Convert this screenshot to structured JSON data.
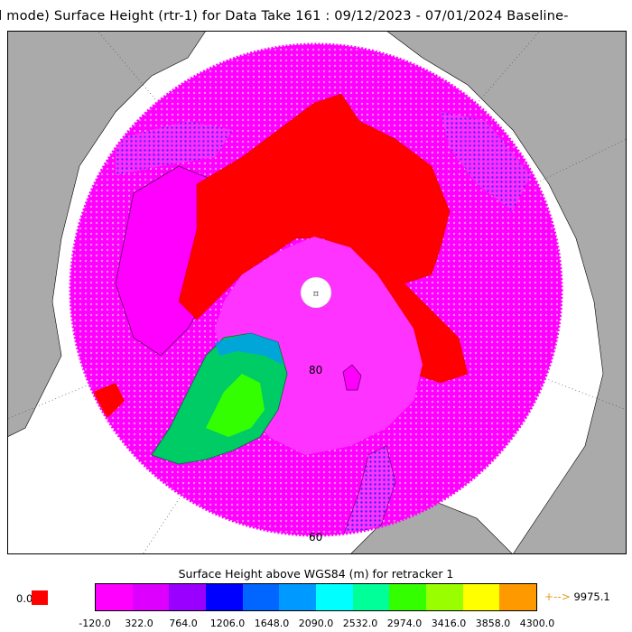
{
  "title": "ll mode) Surface Height (rtr-1) for Data Take 161 : 09/12/2023 - 07/01/2024 Baseline-",
  "map": {
    "labels": {
      "lat_80": "80",
      "lat_60": "60",
      "pole_marker": "⌑"
    },
    "colors": {
      "ocean": "#ff00ff",
      "sea_ice": "#ff0000",
      "land_bg": "#aaaaaa",
      "greenland_low": "#00cc66",
      "greenland_high": "#33ff00"
    }
  },
  "legend": {
    "title": "Surface Height above WGS84 (m) for retracker 1",
    "nodata_label": "0.0",
    "nodata_color": "#ff0000",
    "over_label": "9975.1",
    "over_arrow": "+-->",
    "swatch_colors": [
      "#ff00ff",
      "#dd00ff",
      "#9900ff",
      "#0000ff",
      "#0066ff",
      "#0099ff",
      "#00ffff",
      "#00ff99",
      "#33ff00",
      "#99ff00",
      "#ffff00",
      "#ff9900"
    ],
    "tick_labels": [
      "-120.0",
      "322.0",
      "764.0",
      "1206.0",
      "1648.0",
      "2090.0",
      "2532.0",
      "2974.0",
      "3416.0",
      "3858.0",
      "4300.0"
    ]
  }
}
